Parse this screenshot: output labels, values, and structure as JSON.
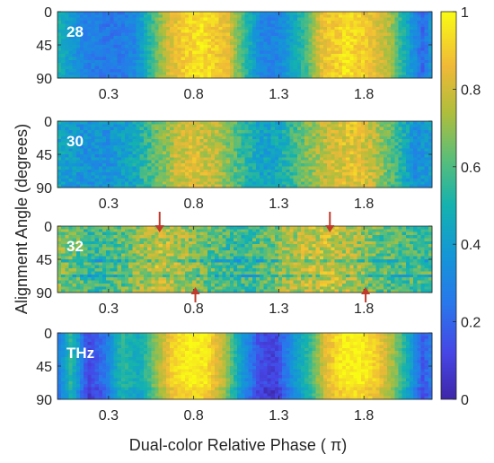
{
  "chart_data": {
    "type": "heatmap",
    "ylabel": "Alignment Angle (degrees)",
    "xlabel": "Dual-color Relative Phase ( π)",
    "x_ticks": [
      "0.3",
      "0.8",
      "1.3",
      "1.8"
    ],
    "y_ticks": [
      "0",
      "45",
      "90"
    ],
    "x_range": [
      0,
      2.2
    ],
    "y_range": [
      0,
      90
    ],
    "colorbar": {
      "min": 0,
      "max": 1,
      "ticks": [
        "0",
        "0.2",
        "0.4",
        "0.6",
        "0.8",
        "1"
      ]
    },
    "colormap": "parula",
    "panels": [
      {
        "label": "28",
        "profile_x": [
          0.0,
          0.15,
          0.3,
          0.45,
          0.55,
          0.65,
          0.75,
          0.85,
          1.0,
          1.1,
          1.2,
          1.3,
          1.45,
          1.55,
          1.7,
          1.8,
          1.95,
          2.05,
          2.15,
          2.2
        ],
        "profile_y": [
          0.5,
          0.3,
          0.25,
          0.3,
          0.55,
          0.8,
          0.92,
          0.95,
          0.85,
          0.55,
          0.3,
          0.3,
          0.55,
          0.85,
          0.95,
          0.9,
          0.75,
          0.45,
          0.2,
          0.4
        ]
      },
      {
        "label": "30",
        "profile_x": [
          0.0,
          0.15,
          0.3,
          0.45,
          0.6,
          0.7,
          0.8,
          0.95,
          1.05,
          1.2,
          1.3,
          1.45,
          1.6,
          1.75,
          1.85,
          2.0,
          2.1,
          2.2
        ],
        "profile_y": [
          0.45,
          0.35,
          0.35,
          0.45,
          0.65,
          0.78,
          0.82,
          0.75,
          0.6,
          0.42,
          0.45,
          0.65,
          0.8,
          0.85,
          0.78,
          0.55,
          0.35,
          0.4
        ]
      },
      {
        "label": "32",
        "profile_x": [
          0.0,
          0.2,
          0.35,
          0.5,
          0.6,
          0.75,
          0.9,
          1.05,
          1.2,
          1.35,
          1.5,
          1.6,
          1.75,
          1.9,
          2.05,
          2.2
        ],
        "profile_y": [
          0.7,
          0.55,
          0.6,
          0.72,
          0.78,
          0.72,
          0.62,
          0.55,
          0.6,
          0.72,
          0.78,
          0.8,
          0.72,
          0.62,
          0.58,
          0.6
        ]
      },
      {
        "label": "THz",
        "profile_x": [
          0.0,
          0.08,
          0.18,
          0.28,
          0.38,
          0.48,
          0.58,
          0.68,
          0.78,
          0.88,
          0.98,
          1.08,
          1.18,
          1.28,
          1.38,
          1.48,
          1.58,
          1.68,
          1.78,
          1.88,
          1.98,
          2.08,
          2.15,
          2.2
        ],
        "profile_y": [
          0.25,
          0.55,
          0.12,
          0.25,
          0.55,
          0.45,
          0.7,
          0.92,
          0.98,
          0.95,
          0.75,
          0.4,
          0.15,
          0.1,
          0.35,
          0.55,
          0.85,
          0.98,
          0.98,
          0.9,
          0.7,
          0.4,
          0.15,
          0.3
        ]
      }
    ],
    "markers": [
      {
        "panel": "32",
        "edge": "top",
        "x": 0.6
      },
      {
        "panel": "32",
        "edge": "top",
        "x": 1.6
      },
      {
        "panel": "32",
        "edge": "bottom",
        "x": 0.81
      },
      {
        "panel": "32",
        "edge": "bottom",
        "x": 1.81
      }
    ],
    "marker_color": "#c0392b"
  }
}
